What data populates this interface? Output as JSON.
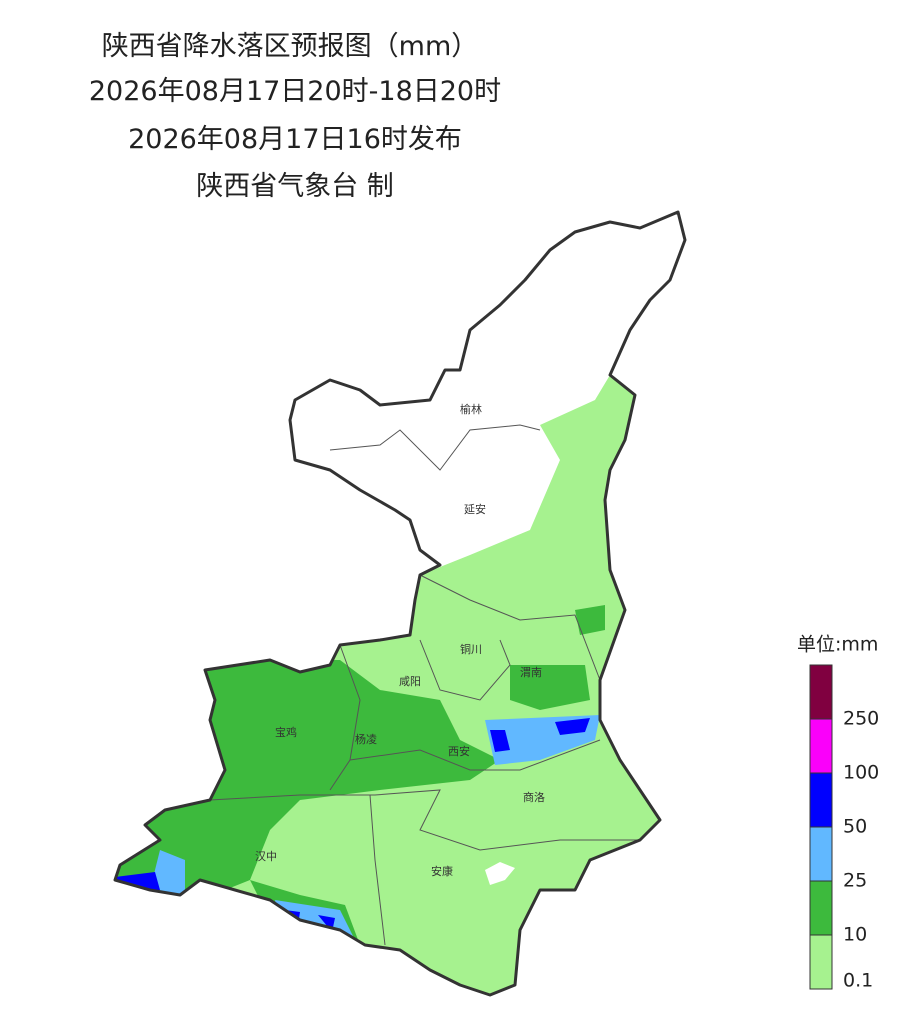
{
  "header": {
    "title": "陕西省降水落区预报图（mm）",
    "period": "2026年08月17日20时-18日20时",
    "issued": "2026年08月17日16时发布",
    "issuer": "陕西省气象台 制"
  },
  "cities": [
    "榆林",
    "延安",
    "铜川",
    "渭南",
    "咸阳",
    "宝鸡",
    "杨凌",
    "西安",
    "商洛",
    "汉中",
    "安康"
  ],
  "legend": {
    "title": "单位:mm",
    "levels": [
      0.1,
      10,
      25,
      50,
      100,
      250
    ],
    "colors": [
      "#a6f28f",
      "#3dba3d",
      "#61b8ff",
      "#0000fe",
      "#fa00fa",
      "#800040"
    ]
  }
}
